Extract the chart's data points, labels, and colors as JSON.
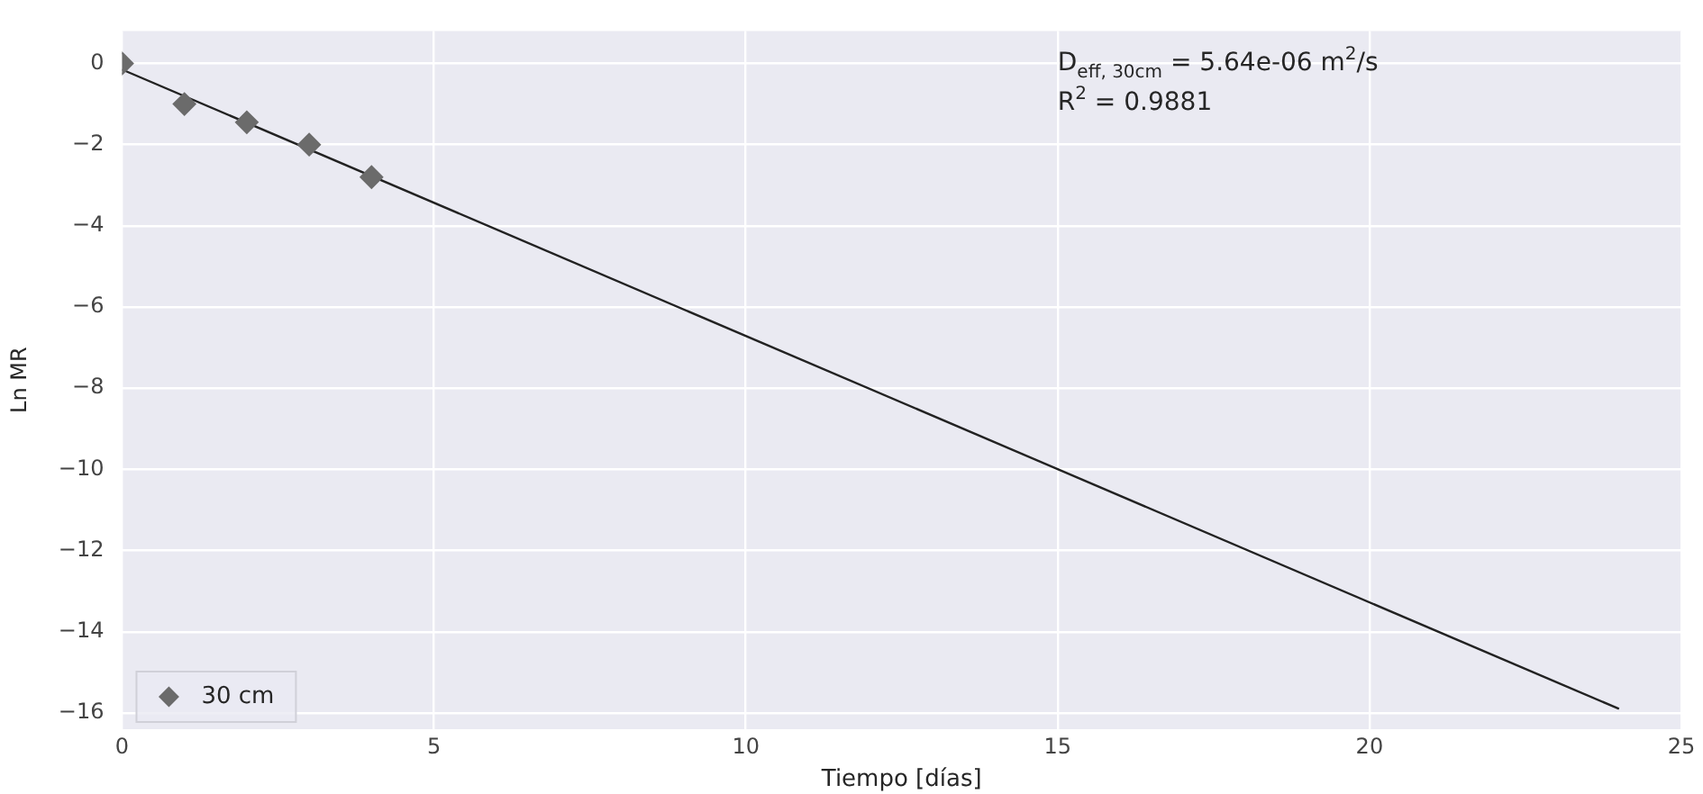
{
  "chart_data": {
    "type": "scatter",
    "xlabel": "Tiempo [días]",
    "ylabel": "Ln MR",
    "series": [
      {
        "name": "30 cm",
        "color": "#6b6b6b",
        "marker": "diamond",
        "x": [
          0,
          1,
          2,
          3,
          4
        ],
        "values": [
          0,
          -1.0,
          -1.45,
          -2.0,
          -2.8
        ]
      },
      {
        "type": "line",
        "color": "#222222",
        "marker": "none",
        "x": [
          0,
          24
        ],
        "values": [
          -0.15,
          -15.9
        ]
      }
    ],
    "annotations": [
      "D$_{eff, 30cm}$ = 5.64e-06 m$^{2}$/s",
      "R$^{2}$ = 0.9881"
    ],
    "xlim": [
      0,
      25
    ],
    "xticks": [
      0,
      5,
      10,
      15,
      20,
      25
    ],
    "ylim": [
      -16.4,
      0.8
    ],
    "yticks": [
      0,
      -2,
      -4,
      -6,
      -8,
      -10,
      -12,
      -14,
      -16
    ],
    "grid": true,
    "legend": "bottom left"
  }
}
